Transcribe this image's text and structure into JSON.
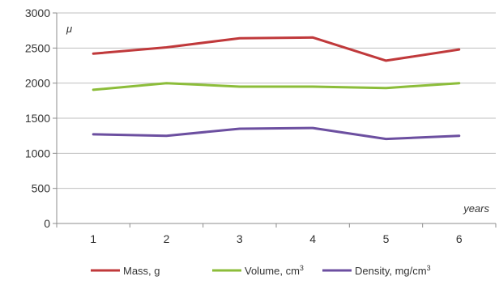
{
  "chart_data": {
    "type": "line",
    "x": [
      1,
      2,
      3,
      4,
      5,
      6
    ],
    "series": [
      {
        "name": "Mass, g",
        "name_sup": "",
        "color": "#c0393b",
        "values": [
          2420,
          2510,
          2640,
          2650,
          2320,
          2480
        ]
      },
      {
        "name": "Volume, cm",
        "name_sup": "3",
        "color": "#8cbd3a",
        "values": [
          1905,
          2000,
          1950,
          1950,
          1930,
          2000
        ]
      },
      {
        "name": "Density, mg/cm",
        "name_sup": "3",
        "color": "#6c4fa0",
        "values": [
          1270,
          1250,
          1350,
          1360,
          1205,
          1250
        ]
      }
    ],
    "ylabel": "μ",
    "xlabel": "years",
    "ylim": [
      0,
      3000
    ],
    "yticks": [
      0,
      500,
      1000,
      1500,
      2000,
      2500,
      3000
    ],
    "grid": "horizontal",
    "legend_position": "bottom"
  }
}
